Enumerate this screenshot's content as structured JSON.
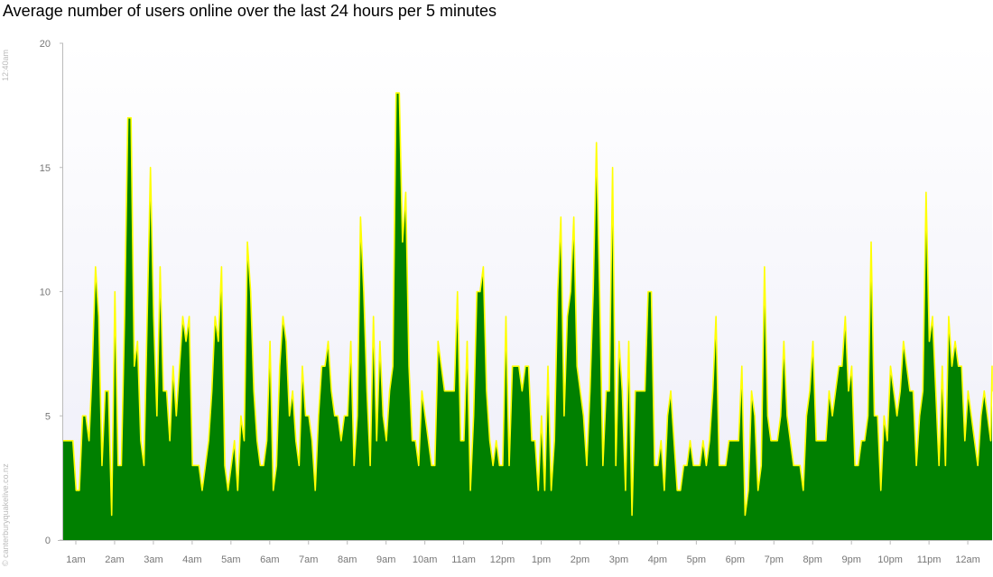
{
  "chart_data": {
    "type": "area",
    "title": "Average number of users online over the last 24 hours per 5 minutes",
    "xlabel": "",
    "ylabel": "",
    "ylim": [
      0,
      20
    ],
    "yticks": [
      0,
      5,
      10,
      15,
      20
    ],
    "x_tick_labels": [
      "1am",
      "2am",
      "3am",
      "4am",
      "5am",
      "6am",
      "7am",
      "8am",
      "9am",
      "10am",
      "11am",
      "12pm",
      "1pm",
      "2pm",
      "3pm",
      "4pm",
      "5pm",
      "6pm",
      "7pm",
      "8pm",
      "9pm",
      "10pm",
      "11pm",
      "12am"
    ],
    "x_interval_minutes": 5,
    "start_time": "12:40am",
    "grid": false,
    "colors": {
      "fill": "#008000",
      "line": "#ffff00",
      "plot_bg_top": "#ffffff",
      "plot_bg_bottom": "#eeeef8",
      "axis": "#bbbbbb"
    },
    "values": [
      4,
      4,
      4,
      4,
      2,
      2,
      5,
      5,
      4,
      7,
      11,
      9,
      3,
      6,
      6,
      1,
      10,
      3,
      3,
      9,
      17,
      17,
      7,
      8,
      4,
      3,
      9,
      15,
      9,
      5,
      11,
      6,
      6,
      4,
      7,
      5,
      7,
      9,
      8,
      9,
      3,
      3,
      3,
      2,
      3,
      4,
      6,
      9,
      8,
      11,
      3,
      2,
      3,
      4,
      2,
      5,
      4,
      12,
      10,
      6,
      4,
      3,
      3,
      4,
      8,
      2,
      3,
      7,
      9,
      8,
      5,
      6,
      4,
      3,
      7,
      5,
      5,
      4,
      2,
      5,
      7,
      7,
      8,
      6,
      5,
      5,
      4,
      5,
      5,
      8,
      3,
      5,
      13,
      10,
      6,
      3,
      9,
      4,
      8,
      5,
      4,
      6,
      7,
      18,
      18,
      12,
      14,
      7,
      4,
      4,
      3,
      6,
      5,
      4,
      3,
      3,
      8,
      7,
      6,
      6,
      6,
      6,
      10,
      4,
      4,
      8,
      2,
      5,
      10,
      10,
      11,
      6,
      4,
      3,
      4,
      3,
      3,
      9,
      3,
      7,
      7,
      7,
      6,
      7,
      7,
      4,
      4,
      2,
      5,
      2,
      7,
      2,
      4,
      10,
      13,
      5,
      9,
      10,
      13,
      7,
      6,
      5,
      3,
      6,
      10,
      16,
      10,
      3,
      6,
      6,
      15,
      3,
      8,
      6,
      2,
      8,
      1,
      6,
      6,
      6,
      6,
      10,
      10,
      3,
      3,
      4,
      2,
      5,
      6,
      4,
      2,
      2,
      3,
      3,
      4,
      3,
      3,
      3,
      4,
      3,
      4,
      6,
      9,
      3,
      3,
      3,
      4,
      4,
      4,
      4,
      7,
      1,
      2,
      6,
      5,
      2,
      3,
      11,
      5,
      4,
      4,
      4,
      5,
      8,
      5,
      4,
      3,
      3,
      3,
      2,
      5,
      6,
      8,
      4,
      4,
      4,
      4,
      6,
      5,
      6,
      7,
      7,
      9,
      6,
      7,
      3,
      3,
      4,
      4,
      5,
      12,
      5,
      5,
      2,
      5,
      4,
      7,
      6,
      5,
      6,
      8,
      7,
      6,
      6,
      3,
      5,
      6,
      14,
      8,
      9,
      6,
      3,
      7,
      3,
      9,
      7,
      8,
      7,
      7,
      4,
      6,
      5,
      4,
      3,
      5,
      6,
      5,
      4,
      7,
      6,
      7
    ]
  },
  "side_text": {
    "time": "12:40am",
    "copyright": "© canterburyquakelive.co.nz"
  }
}
